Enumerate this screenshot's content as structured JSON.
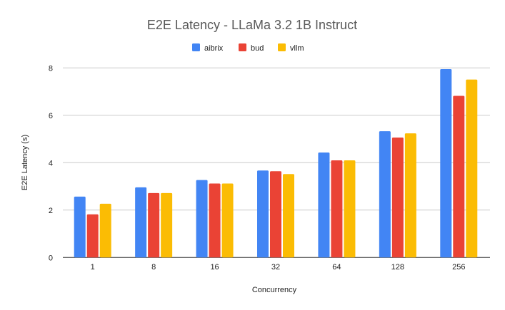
{
  "chart_data": {
    "type": "bar",
    "title": "E2E Latency - LLaMa 3.2 1B Instruct",
    "xlabel": "Concurrency",
    "ylabel": "E2E Latency (s)",
    "categories": [
      "1",
      "8",
      "16",
      "32",
      "64",
      "128",
      "256"
    ],
    "series": [
      {
        "name": "aibrix",
        "color": "#4285F4",
        "values": [
          2.57,
          2.96,
          3.27,
          3.67,
          4.43,
          5.33,
          7.95
        ]
      },
      {
        "name": "bud",
        "color": "#EA4335",
        "values": [
          1.82,
          2.72,
          3.12,
          3.64,
          4.1,
          5.06,
          6.82
        ]
      },
      {
        "name": "vllm",
        "color": "#FBBC04",
        "values": [
          2.27,
          2.72,
          3.12,
          3.52,
          4.1,
          5.24,
          7.51
        ]
      }
    ],
    "ylim": [
      0,
      8
    ],
    "yticks": [
      "0",
      "2",
      "4",
      "6",
      "8"
    ],
    "grid": true,
    "legend": "top-center"
  }
}
